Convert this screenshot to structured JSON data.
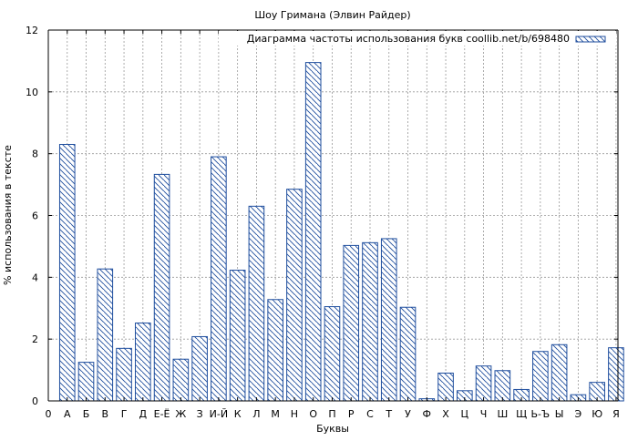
{
  "chart_data": {
    "type": "bar",
    "title": "Шоу Гримана (Элвин Райдер)",
    "xlabel": "Буквы",
    "ylabel": "% использования в тексте",
    "legend": {
      "label": "Диаграмма частоты использования букв coollib.net/b/698480",
      "placement": "top-right"
    },
    "grid": true,
    "ylim": [
      0,
      12
    ],
    "yticks": [
      0,
      2,
      4,
      6,
      8,
      10,
      12
    ],
    "x_start_label": "0",
    "categories": [
      "А",
      "Б",
      "В",
      "Г",
      "Д",
      "Е-Ё",
      "Ж",
      "З",
      "И-Й",
      "К",
      "Л",
      "М",
      "Н",
      "О",
      "П",
      "Р",
      "С",
      "Т",
      "У",
      "Ф",
      "Х",
      "Ц",
      "Ч",
      "Ш",
      "Щ",
      "Ь-Ъ",
      "Ы",
      "Э",
      "Ю",
      "Я"
    ],
    "values": [
      8.3,
      1.25,
      4.27,
      1.7,
      2.52,
      7.33,
      1.35,
      2.08,
      7.9,
      4.23,
      6.3,
      3.28,
      6.85,
      10.95,
      3.05,
      5.03,
      5.12,
      5.25,
      3.03,
      0.07,
      0.9,
      0.33,
      1.13,
      0.98,
      0.37,
      1.6,
      1.82,
      0.2,
      0.6,
      1.72
    ],
    "colors": {
      "bar_stroke": "#1f4e9e",
      "hatch": "#1f4e9e",
      "grid": "#999999",
      "axis": "#000000"
    }
  }
}
